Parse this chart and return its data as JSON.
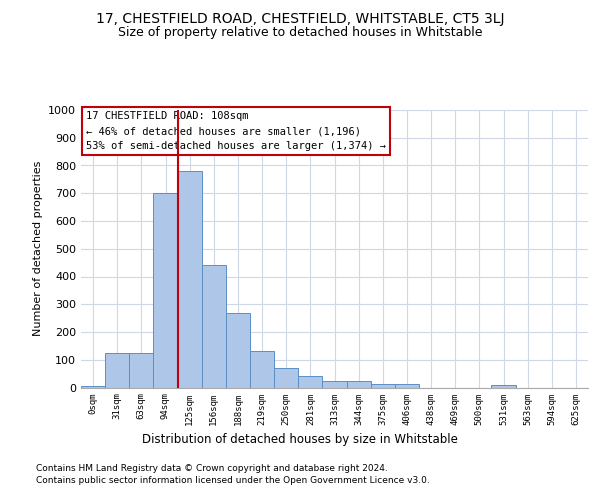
{
  "title1": "17, CHESTFIELD ROAD, CHESTFIELD, WHITSTABLE, CT5 3LJ",
  "title2": "Size of property relative to detached houses in Whitstable",
  "xlabel": "Distribution of detached houses by size in Whitstable",
  "ylabel": "Number of detached properties",
  "categories": [
    "0sqm",
    "31sqm",
    "63sqm",
    "94sqm",
    "125sqm",
    "156sqm",
    "188sqm",
    "219sqm",
    "250sqm",
    "281sqm",
    "313sqm",
    "344sqm",
    "375sqm",
    "406sqm",
    "438sqm",
    "469sqm",
    "500sqm",
    "531sqm",
    "563sqm",
    "594sqm",
    "625sqm"
  ],
  "values": [
    5,
    125,
    125,
    700,
    780,
    440,
    270,
    132,
    70,
    40,
    25,
    25,
    12,
    12,
    0,
    0,
    0,
    8,
    0,
    0,
    0
  ],
  "bar_color": "#aec6e8",
  "bar_edge_color": "#5b8fc4",
  "vline_color": "#c0000b",
  "annotation_text": "17 CHESTFIELD ROAD: 108sqm\n← 46% of detached houses are smaller (1,196)\n53% of semi-detached houses are larger (1,374) →",
  "annotation_box_color": "#ffffff",
  "annotation_box_edge": "#c0000b",
  "ylim": [
    0,
    1000
  ],
  "yticks": [
    0,
    100,
    200,
    300,
    400,
    500,
    600,
    700,
    800,
    900,
    1000
  ],
  "footer1": "Contains HM Land Registry data © Crown copyright and database right 2024.",
  "footer2": "Contains public sector information licensed under the Open Government Licence v3.0.",
  "bg_color": "#ffffff",
  "grid_color": "#d0d8e8"
}
